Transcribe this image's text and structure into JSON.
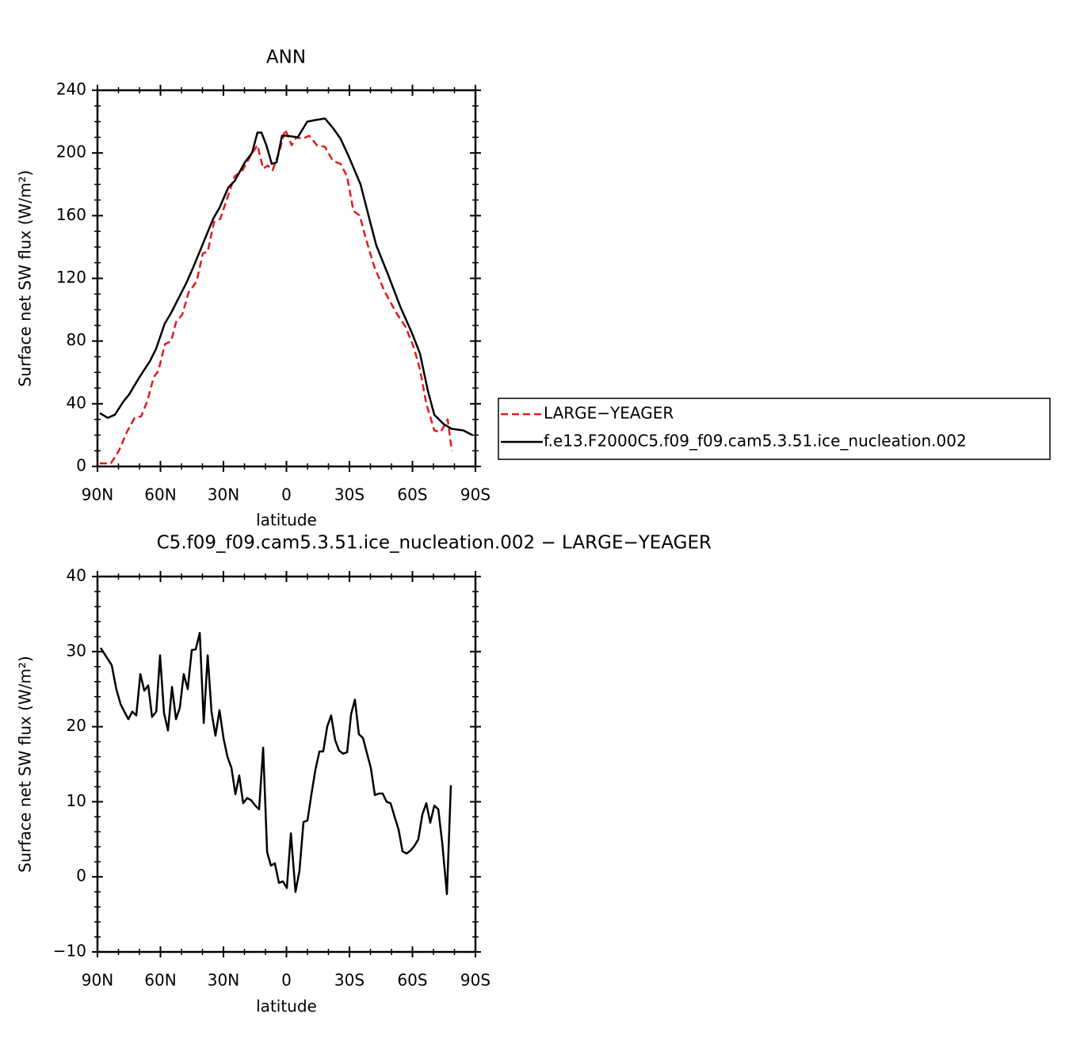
{
  "chart_data": [
    {
      "type": "line",
      "title": "ANN",
      "xlabel": "latitude",
      "ylabel": "Surface net SW flux (W/m²)",
      "xlim": [
        90,
        -90
      ],
      "ylim": [
        0,
        240
      ],
      "xticks": [
        {
          "value": 90,
          "label": "90N"
        },
        {
          "value": 60,
          "label": "60N"
        },
        {
          "value": 30,
          "label": "30N"
        },
        0,
        {
          "value": -30,
          "label": "30S"
        },
        {
          "value": -60,
          "label": "60S"
        },
        {
          "value": -90,
          "label": "90S"
        }
      ],
      "yticks": [
        0,
        40,
        80,
        120,
        160,
        200,
        240
      ],
      "legend": "right",
      "series": [
        {
          "name": "LARGE−YEAGER",
          "color": "#e41a1c",
          "linestyle": "dashed",
          "x": [
            88.9,
            83.6,
            79.8,
            76,
            72.3,
            69.2,
            66.2,
            63.2,
            61,
            57.9,
            54.9,
            52.6,
            49.6,
            46.6,
            42.8,
            39.8,
            37.5,
            34.5,
            31.5,
            28.5,
            24.7,
            20.9,
            17.2,
            13.8,
            11.1,
            8.9,
            6.6,
            3.6,
            0.6,
            -2.5,
            -4.7,
            -7.7,
            -10.8,
            -14.5,
            -18.3,
            -22.1,
            -25.8,
            -28.9,
            -31.9,
            -34.9,
            -37.9,
            -41.7,
            -46.6,
            -52.3,
            -56.8,
            -60.6,
            -63.6,
            -66.6,
            -70.4,
            -73.4,
            -76.8,
            -78.7
          ],
          "values": [
            2,
            2,
            10,
            22,
            31,
            32,
            42,
            57,
            61,
            78,
            80,
            92,
            97,
            111,
            118,
            136,
            137,
            156,
            158,
            170,
            185,
            189,
            198,
            205,
            190,
            192,
            189,
            200,
            215,
            205,
            210,
            209,
            211,
            205,
            204,
            195,
            193,
            185,
            163,
            160,
            145,
            128,
            112,
            98,
            89,
            76,
            62,
            40,
            23,
            22,
            30,
            10
          ]
        },
        {
          "name": "f.e13.F2000C5.f09_f09.cam5.3.51.ice_nucleation.002",
          "color": "#000000",
          "linestyle": "solid",
          "x": [
            88.9,
            85.1,
            81.7,
            77.9,
            74.9,
            70,
            65.1,
            62.1,
            58,
            54.9,
            51.9,
            47.7,
            44.7,
            39.8,
            34.9,
            31.9,
            27.7,
            24.7,
            19.8,
            16.4,
            13.8,
            11.9,
            9.6,
            7,
            4.7,
            2.1,
            -0.1,
            -5.4,
            -9.9,
            -13.7,
            -18.3,
            -22.1,
            -25.8,
            -29.6,
            -35.3,
            -39.1,
            -42.8,
            -48.5,
            -54.2,
            -59.8,
            -63.6,
            -67.4,
            -70.4,
            -74.9,
            -78.7,
            -84.3,
            -88.5
          ],
          "values": [
            34,
            31,
            33,
            41,
            46,
            57,
            67,
            75,
            91,
            98,
            106,
            117,
            126,
            142,
            158,
            165,
            178,
            182,
            194,
            200,
            213,
            213,
            205,
            193,
            194,
            211,
            211,
            210,
            220,
            221,
            222,
            216,
            209,
            198,
            180,
            160,
            141,
            122,
            102,
            85,
            72,
            48,
            33,
            27,
            24,
            23,
            20
          ]
        }
      ]
    },
    {
      "type": "line",
      "title": "C5.f09_f09.cam5.3.51.ice_nucleation.002 − LARGE−YEAGER",
      "xlabel": "latitude",
      "ylabel": "Surface net SW flux (W/m²)",
      "xlim": [
        90,
        -90
      ],
      "ylim": [
        -10,
        40
      ],
      "xticks": [
        {
          "value": 90,
          "label": "90N"
        },
        {
          "value": 60,
          "label": "60N"
        },
        {
          "value": 30,
          "label": "30N"
        },
        0,
        {
          "value": -30,
          "label": "30S"
        },
        {
          "value": -60,
          "label": "60S"
        },
        {
          "value": -90,
          "label": "90S"
        }
      ],
      "yticks": [
        {
          "value": -10,
          "label": "−10"
        },
        0,
        10,
        20,
        30,
        40
      ],
      "color": "#000000",
      "x": [
        88.5,
        83.2,
        81,
        79,
        77.2,
        75.3,
        73.4,
        71.5,
        69.6,
        67.7,
        65.8,
        64,
        62,
        60.2,
        58.3,
        56.4,
        54.5,
        52.6,
        50.8,
        48.9,
        47,
        45.1,
        43.2,
        41.3,
        39.4,
        37.5,
        35.7,
        33.8,
        31.9,
        30,
        28.1,
        26.2,
        24.3,
        22.5,
        20.6,
        18.7,
        16.8,
        14.9,
        13,
        11.1,
        9.2,
        7.4,
        5.5,
        3.6,
        1.7,
        -0.2,
        -2.1,
        -4.3,
        -6.2,
        -8.1,
        -10,
        -11.9,
        -13.8,
        -15.7,
        -17.5,
        -19.4,
        -21.3,
        -23.2,
        -25.1,
        -27,
        -28.9,
        -30.8,
        -32.6,
        -34.5,
        -36.4,
        -38.3,
        -40.2,
        -42.1,
        -44,
        -45.8,
        -47.7,
        -49.6,
        -51.5,
        -53.4,
        -55.3,
        -57.2,
        -59.1,
        -60.9,
        -62.8,
        -64.7,
        -66.6,
        -68.5,
        -70.4,
        -72.3,
        -74.2,
        -76.4,
        -78.3
      ],
      "values": [
        30.5,
        28.2,
        25,
        23,
        22,
        21,
        22,
        21.5,
        27,
        24.8,
        25.5,
        21.3,
        22,
        29.5,
        21.8,
        19.5,
        25.3,
        21,
        22.5,
        27,
        25,
        30.2,
        30.3,
        32.5,
        20.5,
        29.5,
        22,
        18.8,
        22.2,
        18.5,
        16,
        14.5,
        11,
        13.5,
        9.8,
        10.5,
        10.2,
        9.5,
        9,
        17.2,
        3.3,
        1.5,
        1.8,
        -0.8,
        -0.6,
        -1.5,
        5.8,
        -2,
        0.8,
        7.3,
        7.5,
        11,
        14.3,
        16.7,
        16.7,
        20,
        21.5,
        18.2,
        16.8,
        16.4,
        16.6,
        21.7,
        23.6,
        19,
        18.5,
        16.5,
        14.5,
        10.9,
        11.1,
        11.1,
        10,
        9.8,
        8,
        6.3,
        3.4,
        3.1,
        3.5,
        4.1,
        5,
        8.3,
        9.8,
        7.2,
        9.5,
        9,
        4.5,
        -2.3,
        12.2
      ]
    }
  ]
}
